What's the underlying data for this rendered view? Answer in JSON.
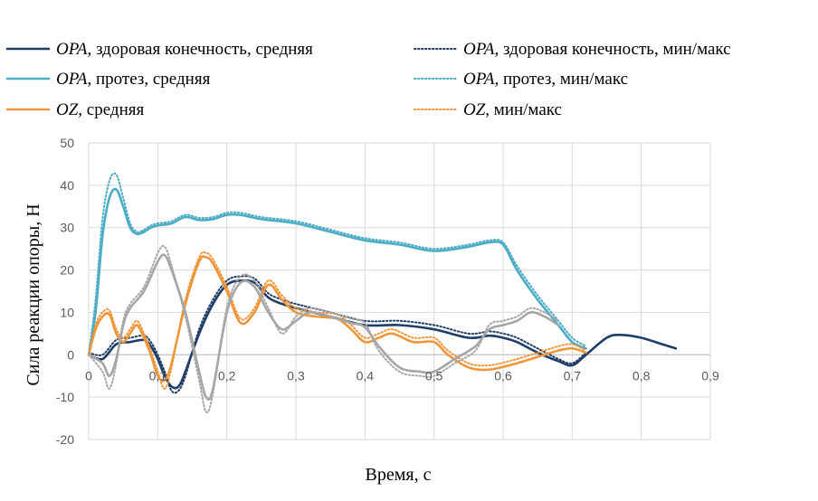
{
  "chart_data": {
    "type": "line",
    "xlabel": "Время, с",
    "ylabel": "Сила реакции опоры, Н",
    "xlim": [
      0,
      0.9
    ],
    "ylim": [
      -20,
      50
    ],
    "xticks": [
      "0",
      "0,1",
      "0,2",
      "0,3",
      "0,4",
      "0,5",
      "0,6",
      "0,7",
      "0,8",
      "0,9"
    ],
    "yticks": [
      "-20",
      "-10",
      "0",
      "10",
      "20",
      "30",
      "40",
      "50"
    ],
    "grid": true,
    "legend_position": "top",
    "series": [
      {
        "id": "opa_healthy_avg",
        "name_italic": "OPA,",
        "name_rest": " здоровая конечность, средняя",
        "color": "#1f3d68",
        "style": "solid",
        "x": [
          0,
          0.02,
          0.04,
          0.06,
          0.08,
          0.09,
          0.1,
          0.11,
          0.12,
          0.13,
          0.14,
          0.16,
          0.18,
          0.2,
          0.22,
          0.24,
          0.26,
          0.28,
          0.3,
          0.35,
          0.4,
          0.45,
          0.5,
          0.55,
          0.58,
          0.6,
          0.62,
          0.65,
          0.68,
          0.7,
          0.72,
          0.75,
          0.77,
          0.8,
          0.83,
          0.85
        ],
        "y": [
          0,
          -1,
          2.5,
          3,
          3.5,
          2,
          -1,
          -5,
          -7.5,
          -7.5,
          -4,
          5,
          12,
          16.5,
          17.5,
          17,
          13.5,
          12,
          11,
          9,
          7,
          7,
          6,
          4,
          4.5,
          4,
          3,
          0.5,
          -1.5,
          -2.5,
          0,
          4,
          4.7,
          4,
          2.5,
          1.5
        ]
      },
      {
        "id": "opa_healthy_minmax",
        "name_italic": "OPA,",
        "name_rest": " здоровая конечность, мин/макс",
        "color": "#1f3d68",
        "style": "dotted",
        "x": [
          0,
          0.02,
          0.04,
          0.06,
          0.08,
          0.09,
          0.1,
          0.11,
          0.12,
          0.13,
          0.14,
          0.16,
          0.18,
          0.2,
          0.22,
          0.24,
          0.26,
          0.28,
          0.3,
          0.35,
          0.4,
          0.45,
          0.5,
          0.55,
          0.58,
          0.6,
          0.62,
          0.65,
          0.68,
          0.7,
          0.72
        ],
        "y": [
          0.5,
          0,
          3.5,
          4,
          4.5,
          3,
          0,
          -4,
          -8.5,
          -8.5,
          -5,
          6,
          13,
          17.5,
          18.5,
          18,
          14.5,
          13,
          12,
          10,
          8,
          8,
          7,
          5,
          5.5,
          5,
          4,
          1.5,
          -1,
          -2,
          0.5
        ]
      },
      {
        "id": "opa_prosthesis_avg",
        "name_italic": "OPA,",
        "name_rest": " протез, средняя",
        "color": "#4bacc6",
        "style": "solid",
        "x": [
          0,
          0.01,
          0.02,
          0.03,
          0.04,
          0.05,
          0.06,
          0.07,
          0.08,
          0.09,
          0.1,
          0.12,
          0.14,
          0.16,
          0.18,
          0.2,
          0.22,
          0.25,
          0.3,
          0.35,
          0.4,
          0.45,
          0.5,
          0.55,
          0.58,
          0.6,
          0.62,
          0.65,
          0.68,
          0.7,
          0.72
        ],
        "y": [
          0,
          10,
          28,
          37,
          39,
          35,
          30,
          28.5,
          29,
          30,
          30.5,
          31,
          32.5,
          31.8,
          32,
          33,
          33,
          32,
          31,
          29,
          27,
          26,
          24.5,
          25.5,
          26.5,
          26,
          20,
          13,
          7,
          3,
          1.5
        ]
      },
      {
        "id": "opa_prosthesis_minmax",
        "name_italic": "OPA,",
        "name_rest": " протез, мин/макс",
        "color": "#4bacc6",
        "style": "dotted",
        "x": [
          0,
          0.01,
          0.02,
          0.03,
          0.04,
          0.05,
          0.06,
          0.07,
          0.08,
          0.09,
          0.1,
          0.12,
          0.14,
          0.16,
          0.18,
          0.2,
          0.22,
          0.25,
          0.3,
          0.35,
          0.4,
          0.45,
          0.5,
          0.55,
          0.58,
          0.6,
          0.62,
          0.65,
          0.68,
          0.7,
          0.72
        ],
        "y": [
          0,
          13,
          32,
          41,
          42.5,
          37,
          31,
          29,
          29.5,
          30.5,
          31,
          31.5,
          33,
          32.3,
          32.5,
          33.5,
          33.5,
          32.5,
          31.5,
          29.5,
          27.5,
          26.5,
          25,
          26,
          27,
          26.5,
          21,
          14,
          8,
          4,
          2
        ]
      },
      {
        "id": "oz_avg",
        "name_italic": "OZ,",
        "name_rest": " средняя",
        "color": "#f0963a",
        "style": "solid",
        "x": [
          0,
          0.01,
          0.02,
          0.03,
          0.04,
          0.05,
          0.06,
          0.07,
          0.08,
          0.09,
          0.1,
          0.11,
          0.12,
          0.14,
          0.16,
          0.17,
          0.18,
          0.2,
          0.22,
          0.24,
          0.26,
          0.28,
          0.3,
          0.33,
          0.36,
          0.38,
          0.4,
          0.42,
          0.44,
          0.47,
          0.5,
          0.52,
          0.55,
          0.58,
          0.62,
          0.66,
          0.68,
          0.7,
          0.72
        ],
        "y": [
          0,
          6,
          9,
          9.5,
          5,
          3,
          5,
          7,
          4,
          0,
          -5,
          -6,
          -2,
          12,
          22,
          23,
          21.5,
          15,
          7.5,
          10,
          16.5,
          13,
          10,
          9,
          8.5,
          6,
          3,
          4,
          5,
          3,
          3,
          0,
          -3,
          -3.5,
          -2,
          0,
          1,
          1.5,
          0.5
        ]
      },
      {
        "id": "oz_minmax",
        "name_italic": "OZ,",
        "name_rest": " мин/макс",
        "color": "#f0963a",
        "style": "dotted",
        "x": [
          0,
          0.01,
          0.02,
          0.03,
          0.04,
          0.05,
          0.06,
          0.07,
          0.08,
          0.09,
          0.1,
          0.11,
          0.12,
          0.14,
          0.16,
          0.17,
          0.18,
          0.2,
          0.22,
          0.24,
          0.26,
          0.28,
          0.3,
          0.33,
          0.36,
          0.38,
          0.4,
          0.42,
          0.44,
          0.47,
          0.5,
          0.52,
          0.55,
          0.58,
          0.62,
          0.66,
          0.68,
          0.7,
          0.72
        ],
        "y": [
          0,
          7,
          10,
          10.5,
          6,
          4,
          6,
          8,
          5,
          1,
          -4,
          -8,
          -3,
          13,
          23,
          24,
          22.5,
          16,
          8.5,
          11,
          17.5,
          14,
          11,
          10,
          9.5,
          7,
          4,
          5,
          6,
          4,
          4,
          1,
          -2,
          -2.5,
          -1,
          1,
          2,
          2.5,
          1
        ]
      },
      {
        "id": "gray_avg",
        "name_italic": "",
        "name_rest": "",
        "color": "#a6a6a6",
        "style": "solid",
        "x": [
          0,
          0.02,
          0.03,
          0.04,
          0.05,
          0.06,
          0.08,
          0.1,
          0.11,
          0.12,
          0.14,
          0.16,
          0.17,
          0.18,
          0.2,
          0.22,
          0.24,
          0.26,
          0.28,
          0.3,
          0.32,
          0.35,
          0.38,
          0.4,
          0.42,
          0.45,
          0.48,
          0.5,
          0.53,
          0.56,
          0.58,
          0.6,
          0.62,
          0.64,
          0.66,
          0.68
        ],
        "y": [
          0,
          -2,
          -5,
          -1,
          7,
          11,
          15,
          22,
          23.5,
          20,
          10,
          -4,
          -10,
          -8,
          10,
          17,
          16,
          10,
          6,
          8,
          10,
          9,
          7.5,
          6.5,
          2,
          -3,
          -4,
          -4,
          -1,
          2,
          6,
          7,
          8,
          10,
          9,
          7
        ]
      },
      {
        "id": "gray_minmax",
        "name_italic": "",
        "name_rest": "",
        "color": "#a6a6a6",
        "style": "dotted",
        "x": [
          0,
          0.02,
          0.03,
          0.04,
          0.05,
          0.06,
          0.08,
          0.1,
          0.11,
          0.12,
          0.14,
          0.16,
          0.17,
          0.18,
          0.2,
          0.22,
          0.24,
          0.26,
          0.28,
          0.3,
          0.32,
          0.35,
          0.38,
          0.4,
          0.42,
          0.45,
          0.48,
          0.5,
          0.53,
          0.56,
          0.58,
          0.6,
          0.62,
          0.64,
          0.66,
          0.68
        ],
        "y": [
          0,
          -4,
          -8,
          -2,
          8,
          12,
          16,
          24,
          25.5,
          21,
          9,
          -6,
          -13.5,
          -9,
          11,
          18.5,
          17.5,
          11,
          5,
          9,
          11,
          10,
          8.5,
          7.5,
          1,
          -4,
          -5,
          -5,
          -2,
          1,
          7,
          8,
          9,
          11,
          10,
          8
        ]
      }
    ]
  }
}
